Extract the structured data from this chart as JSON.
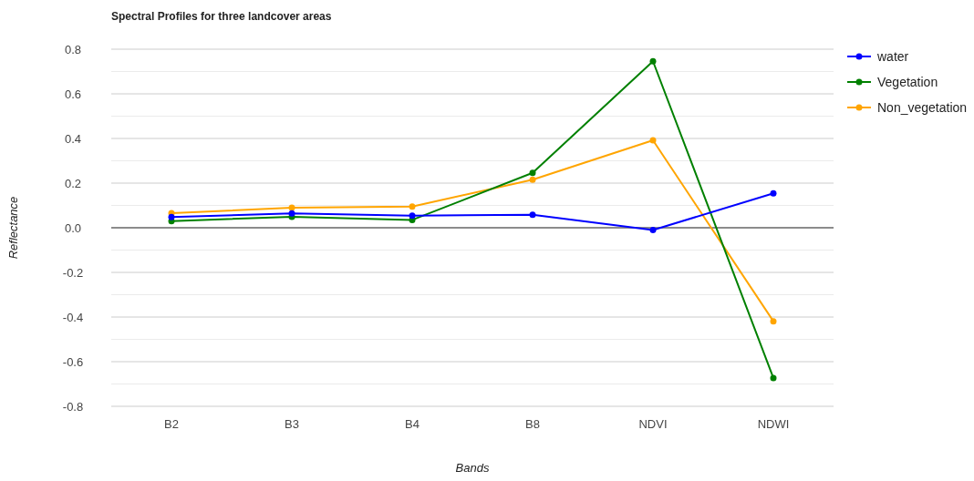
{
  "chart_data": {
    "type": "line",
    "title": "Spectral Profiles for three landcover areas",
    "xlabel": "Bands",
    "ylabel": "Reflectance",
    "categories": [
      "B2",
      "B3",
      "B4",
      "B8",
      "NDVI",
      "NDWI"
    ],
    "series": [
      {
        "name": "water",
        "color": "#0000ff",
        "values": [
          0.048,
          0.064,
          0.054,
          0.058,
          -0.01,
          0.154
        ]
      },
      {
        "name": "Vegetation",
        "color": "#008000",
        "values": [
          0.03,
          0.049,
          0.035,
          0.246,
          0.746,
          -0.673
        ]
      },
      {
        "name": "Non_vegetation",
        "color": "#ffa500",
        "values": [
          0.065,
          0.09,
          0.095,
          0.215,
          0.392,
          -0.419
        ]
      }
    ],
    "ylim": [
      -0.8,
      0.8
    ],
    "yticks": [
      -0.8,
      {
        "value": -0.7,
        "label": null
      },
      -0.6,
      {
        "value": -0.5,
        "label": null
      },
      -0.4,
      {
        "value": -0.3,
        "label": null
      },
      -0.2,
      {
        "value": -0.1,
        "label": null
      },
      {
        "value": 0,
        "label": "0.0"
      },
      {
        "value": 0.1,
        "label": null
      },
      0.2,
      {
        "value": 0.3,
        "label": null
      },
      0.4,
      {
        "value": 0.5,
        "label": null
      },
      0.6,
      {
        "value": 0.7,
        "label": null
      },
      0.8
    ],
    "grid": true,
    "legend": "top right",
    "marker": "circle",
    "line_style": "solid"
  }
}
